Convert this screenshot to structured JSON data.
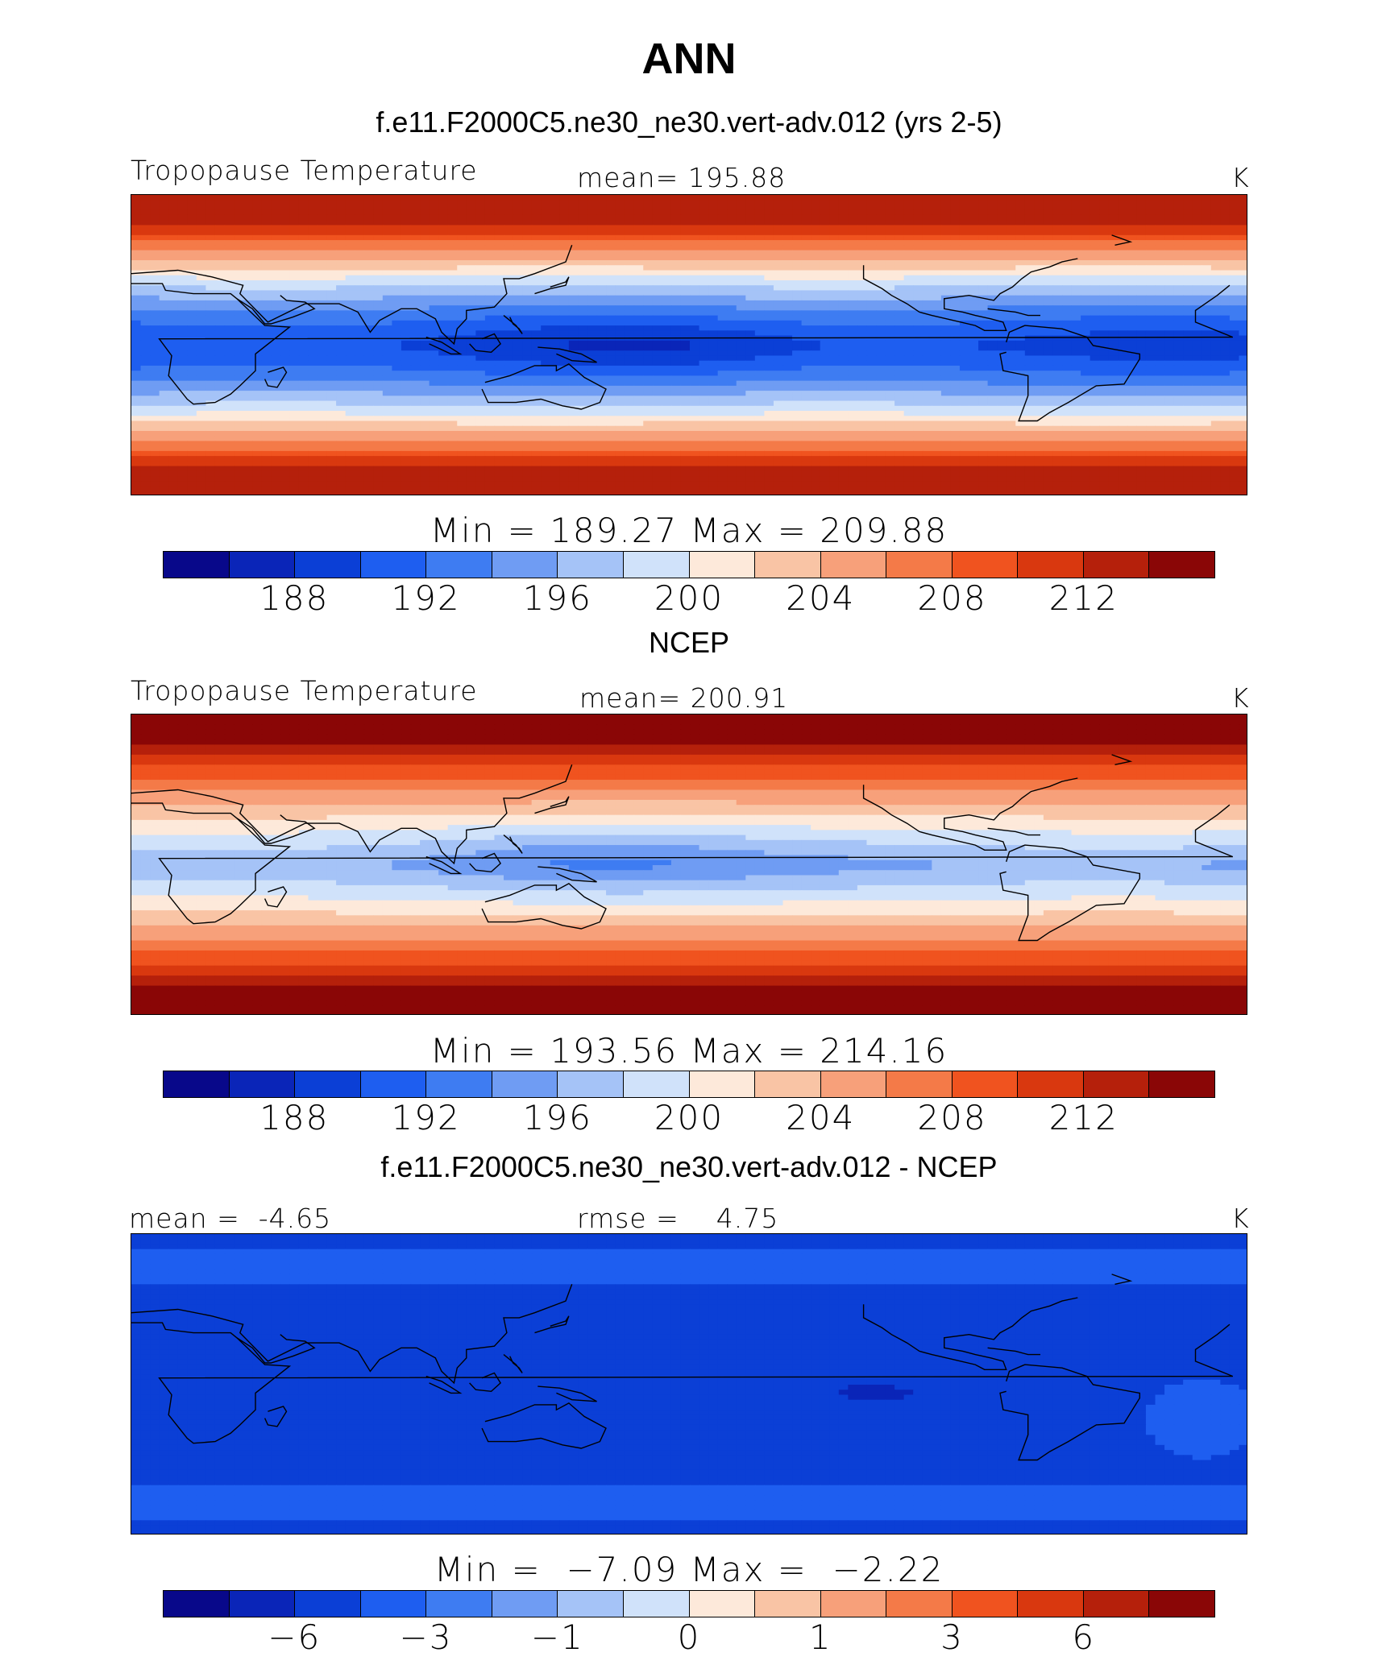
{
  "title": "ANN",
  "panels": [
    {
      "title": "f.e11.F2000C5.ne30_ne30.vert-adv.012 (yrs 2-5)",
      "label_left": "Tropopause Temperature",
      "label_center": "mean= 195.88",
      "label_right": "K",
      "minmax": "Min = 189.27 Max = 209.88"
    },
    {
      "title": "NCEP",
      "label_left": "Tropopause Temperature",
      "label_center": "mean= 200.91",
      "label_right": "K",
      "minmax": "Min = 193.56 Max = 214.16"
    },
    {
      "title": "f.e11.F2000C5.ne30_ne30.vert-adv.012 - NCEP",
      "label_left": "mean =  -4.65",
      "label_center": "rmse =    4.75",
      "label_right": "K",
      "minmax": "Min =  −7.09 Max =  −2.22"
    }
  ],
  "chart_data": [
    {
      "type": "heatmap",
      "title": "f.e11.F2000C5.ne30_ne30.vert-adv.012 (yrs 2-5)",
      "variable": "Tropopause Temperature",
      "units": "K",
      "mean": 195.88,
      "min": 189.27,
      "max": 209.88,
      "colorbar_ticks": [
        "188",
        "192",
        "196",
        "200",
        "204",
        "208",
        "212"
      ],
      "contour_levels": [
        186,
        188,
        190,
        192,
        194,
        196,
        198,
        200,
        202,
        204,
        206,
        208,
        210,
        212,
        214
      ],
      "map": "global cylindrical equidistant, centered 180, coastlines"
    },
    {
      "type": "heatmap",
      "title": "NCEP",
      "variable": "Tropopause Temperature",
      "units": "K",
      "mean": 200.91,
      "min": 193.56,
      "max": 214.16,
      "colorbar_ticks": [
        "188",
        "192",
        "196",
        "200",
        "204",
        "208",
        "212"
      ],
      "contour_levels": [
        186,
        188,
        190,
        192,
        194,
        196,
        198,
        200,
        202,
        204,
        206,
        208,
        210,
        212,
        214
      ]
    },
    {
      "type": "heatmap",
      "title": "f.e11.F2000C5.ne30_ne30.vert-adv.012 - NCEP",
      "units": "K",
      "mean": -4.65,
      "rmse": 4.75,
      "min": -7.09,
      "max": -2.22,
      "colorbar_ticks": [
        "−6",
        "−3",
        "−1",
        "0",
        "1",
        "3",
        "6"
      ]
    }
  ],
  "palette": [
    "#08088a",
    "#0a25b8",
    "#0b3fd6",
    "#1e5ef0",
    "#3e7cf2",
    "#6f9cf3",
    "#a5c3f7",
    "#d0e2fa",
    "#fde9da",
    "#f9c4a5",
    "#f7a07a",
    "#f47a48",
    "#f0531f",
    "#d9380f",
    "#b5200b",
    "#8a0606"
  ]
}
